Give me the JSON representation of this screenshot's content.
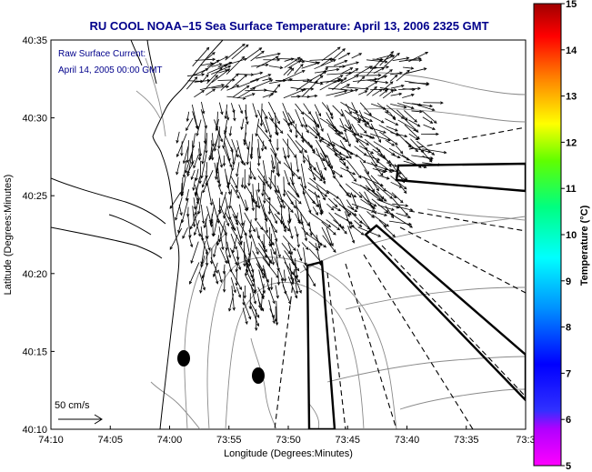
{
  "title": "RU COOL  NOAA–15  Sea Surface Temperature:  April 13, 2006 2325 GMT",
  "annotation": {
    "line1": "Raw Surface Current:",
    "line2": "April 14, 2005 00:00 GMT"
  },
  "scale_label": "50 cm/s",
  "map": {
    "xlabel": "Longitude (Degrees:Minutes)",
    "ylabel": "Latitude (Degrees:Minutes)",
    "x_ticks": [
      "74:10",
      "74:05",
      "74:00",
      "73:55",
      "73:50",
      "73:45",
      "73:40",
      "73:35",
      "73:3"
    ],
    "y_ticks": [
      "40:35",
      "40:30",
      "40:25",
      "40:20",
      "40:15",
      "40:10"
    ],
    "coast_color": "#000000",
    "contour_color": "#888888",
    "vector_color": "#000000"
  },
  "colorbar": {
    "label": "Temperature (°C)",
    "ticks": [
      "15",
      "14",
      "13",
      "12",
      "11",
      "10",
      "9",
      "8",
      "7",
      "6",
      "5"
    ],
    "range": [
      5,
      15
    ]
  }
}
